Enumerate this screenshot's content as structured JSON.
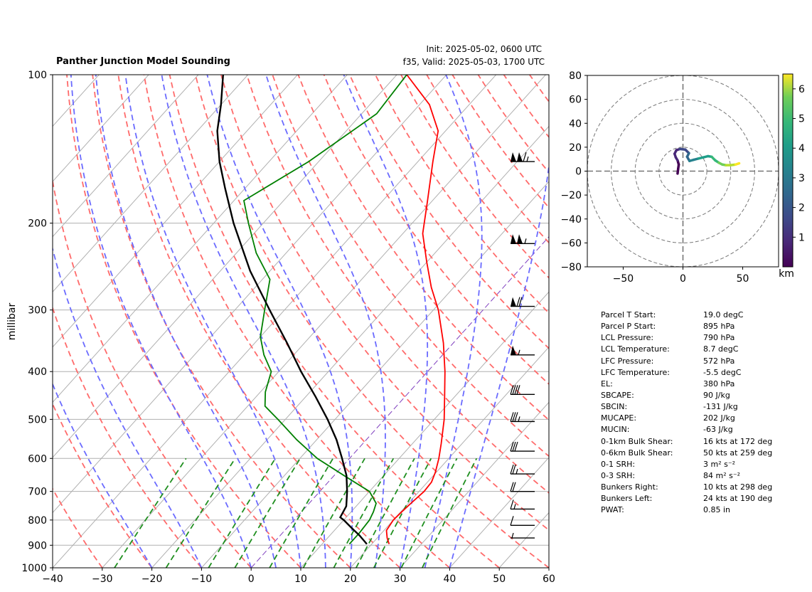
{
  "header": {
    "title": "Panther Junction Model Sounding",
    "init": "Init: 2025-05-02, 0600 UTC",
    "valid": "f35, Valid: 2025-05-03, 1700 UTC"
  },
  "chart_data": [
    {
      "type": "line",
      "subtype": "skew-t log-p",
      "ylabel": "millibar",
      "xlabel": "",
      "xlim": [
        -40,
        60
      ],
      "ylim": [
        1000,
        100
      ],
      "y_scale": "log",
      "x_ticks": [
        -40,
        -30,
        -20,
        -10,
        0,
        10,
        20,
        30,
        40,
        50,
        60
      ],
      "x_tick_labels": [
        "−40",
        "−30",
        "−20",
        "−10",
        "0",
        "10",
        "20",
        "30",
        "40",
        "50",
        "60"
      ],
      "y_ticks": [
        100,
        200,
        300,
        400,
        500,
        600,
        700,
        800,
        900,
        1000
      ],
      "grid": true,
      "colors": {
        "temperature": "#ff0000",
        "dewpoint": "#008000",
        "parcel": "#000000",
        "dry_adiabats": "#ff6b6b",
        "moist_adiabats": "#6b6bff",
        "mixing_ratio": "#1f8f1f",
        "isotherms": "#b0b0b0",
        "zero_isotherm": "#7f3fbf"
      },
      "series": [
        {
          "key": "temperature",
          "p": [
            895,
            870,
            840,
            800,
            770,
            740,
            700,
            670,
            640,
            600,
            560,
            500,
            450,
            400,
            350,
            300,
            270,
            240,
            210,
            180,
            150,
            130,
            115,
            100
          ],
          "values": [
            23.5,
            22.0,
            20.5,
            20.0,
            20.2,
            20.5,
            21.0,
            20.8,
            19.8,
            18.0,
            15.8,
            12.0,
            8.0,
            3.5,
            -2.0,
            -9.0,
            -14.5,
            -20.0,
            -26.0,
            -31.0,
            -37.0,
            -41.5,
            -48.0,
            -58.0
          ]
        },
        {
          "key": "dewpoint",
          "p": [
            895,
            850,
            800,
            770,
            740,
            700,
            650,
            600,
            550,
            500,
            470,
            440,
            400,
            370,
            340,
            300,
            260,
            230,
            200,
            180,
            150,
            120,
            100
          ],
          "values": [
            15.5,
            15.5,
            15.2,
            14.5,
            13.5,
            10.0,
            2.0,
            -6.5,
            -14.0,
            -21.5,
            -26.5,
            -29.0,
            -31.5,
            -36.0,
            -40.0,
            -44.0,
            -48.5,
            -56.0,
            -63.0,
            -68.0,
            -62.0,
            -57.0,
            -58.0
          ]
        },
        {
          "key": "parcel",
          "p": [
            895,
            860,
            830,
            800,
            790,
            750,
            700,
            650,
            600,
            550,
            500,
            450,
            400,
            350,
            300,
            250,
            200,
            170,
            150,
            130,
            115,
            100
          ],
          "values": [
            19.0,
            16.0,
            13.0,
            10.0,
            8.8,
            8.0,
            5.5,
            2.5,
            -1.5,
            -6.0,
            -11.5,
            -18.0,
            -25.5,
            -33.5,
            -43.0,
            -54.0,
            -66.0,
            -74.0,
            -80.0,
            -86.0,
            -90.0,
            -95.0
          ]
        }
      ],
      "wind_barbs": [
        {
          "p": 150,
          "kts": 115
        },
        {
          "p": 220,
          "kts": 105
        },
        {
          "p": 295,
          "kts": 70
        },
        {
          "p": 370,
          "kts": 55
        },
        {
          "p": 445,
          "kts": 40
        },
        {
          "p": 505,
          "kts": 35
        },
        {
          "p": 580,
          "kts": 30
        },
        {
          "p": 645,
          "kts": 25
        },
        {
          "p": 700,
          "kts": 20
        },
        {
          "p": 760,
          "kts": 15
        },
        {
          "p": 820,
          "kts": 10
        },
        {
          "p": 870,
          "kts": 8
        }
      ]
    },
    {
      "type": "line",
      "subtype": "hodograph",
      "xlim": [
        -80,
        80
      ],
      "ylim": [
        -80,
        80
      ],
      "x_ticks": [
        -50,
        0,
        50
      ],
      "x_tick_labels": [
        "−50",
        "0",
        "50"
      ],
      "y_ticks": [
        -80,
        -60,
        -40,
        -20,
        0,
        20,
        40,
        60,
        80
      ],
      "y_tick_labels": [
        "−80",
        "−60",
        "−40",
        "−20",
        "0",
        "20",
        "40",
        "60",
        "80"
      ],
      "rings": [
        20,
        40,
        60,
        80
      ],
      "colorbar": {
        "label": "km",
        "min": 0,
        "max": 6.5,
        "ticks": [
          1,
          2,
          3,
          4,
          5,
          6
        ],
        "colormap": "viridis"
      },
      "u": [
        -4.5,
        -4.0,
        -3.5,
        -4.5,
        -6.0,
        -7.0,
        -5.5,
        -2.5,
        2.0,
        5.0,
        3.5,
        5.5,
        9.0,
        13.0,
        17.0,
        21.0,
        24.0,
        27.0,
        30.0,
        33.0,
        36.0,
        40.0,
        44.0,
        47.0
      ],
      "v": [
        -2.0,
        2.0,
        5.5,
        9.0,
        11.5,
        14.5,
        17.5,
        18.5,
        18.0,
        15.0,
        12.0,
        8.5,
        9.5,
        10.5,
        11.5,
        12.5,
        12.0,
        9.0,
        7.0,
        5.5,
        5.0,
        5.0,
        5.5,
        6.5
      ],
      "height_km": [
        0.1,
        0.3,
        0.5,
        0.7,
        0.9,
        1.1,
        1.3,
        1.5,
        1.8,
        2.1,
        2.4,
        2.7,
        3.0,
        3.3,
        3.6,
        3.9,
        4.2,
        4.5,
        4.8,
        5.1,
        5.4,
        5.7,
        6.0,
        6.2
      ]
    }
  ],
  "parameters": [
    {
      "name": "Parcel T Start:",
      "value": "19.0 degC"
    },
    {
      "name": "Parcel P Start:",
      "value": "895 hPa"
    },
    {
      "name": "LCL Pressure:",
      "value": "790 hPa"
    },
    {
      "name": "LCL Temperature:",
      "value": "8.7 degC"
    },
    {
      "name": "LFC Pressure:",
      "value": "572 hPa"
    },
    {
      "name": "LFC Temperature:",
      "value": "-5.5 degC"
    },
    {
      "name": "EL:",
      "value": "380 hPa"
    },
    {
      "name": "SBCAPE:",
      "value": "90 J/kg"
    },
    {
      "name": "SBCIN:",
      "value": "-131 J/kg"
    },
    {
      "name": "MUCAPE:",
      "value": "202 J/kg"
    },
    {
      "name": "MUCIN:",
      "value": "-63 J/kg"
    },
    {
      "name": "0-1km Bulk Shear:",
      "value": "16 kts at 172 deg"
    },
    {
      "name": "0-6km Bulk Shear:",
      "value": "50 kts at 259 deg"
    },
    {
      "name": "0-1 SRH:",
      "value": "3 m² s⁻²"
    },
    {
      "name": "0-3 SRH:",
      "value": "84 m² s⁻²"
    },
    {
      "name": "Bunkers Right:",
      "value": "10 kts at 298 deg"
    },
    {
      "name": "Bunkers Left:",
      "value": "24 kts at 190 deg"
    },
    {
      "name": "PWAT:",
      "value": "0.85 in"
    }
  ]
}
